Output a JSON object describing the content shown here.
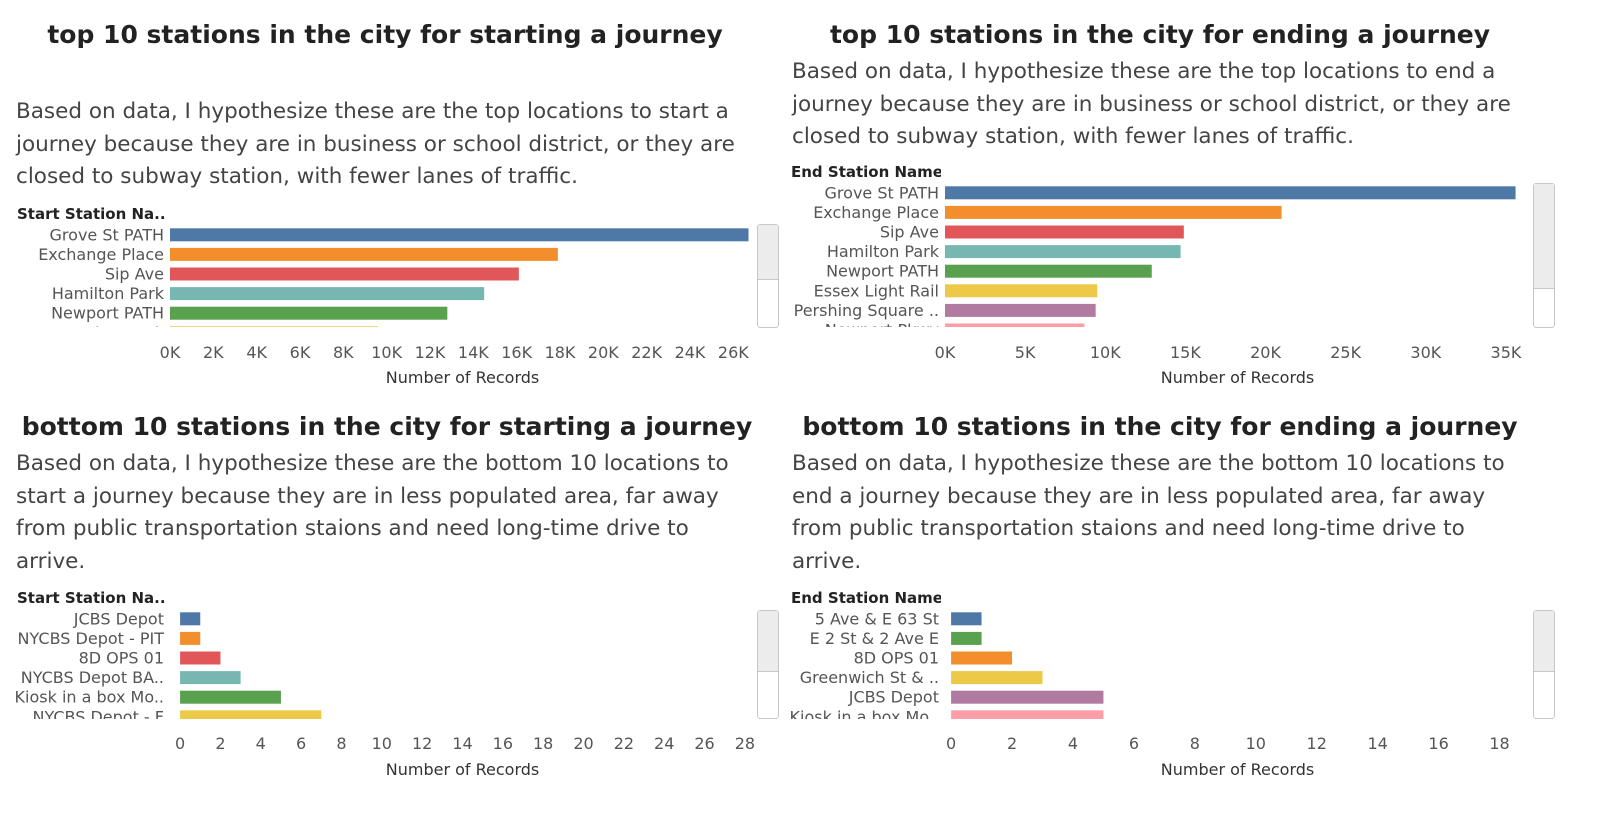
{
  "chart_data": [
    {
      "type": "bar",
      "title": "top 10 stations in the city for starting a journey",
      "description": "Based on data, I hypothesize these are the top locations to start a journey because they are in business or school district, or they are closed to subway station, with fewer lanes of traffic.",
      "row_header": "Start Station Na..",
      "xlabel": "Number of Records",
      "xlim": [
        0,
        27000
      ],
      "x_ticks": [
        0,
        2000,
        4000,
        6000,
        8000,
        10000,
        12000,
        14000,
        16000,
        18000,
        20000,
        22000,
        24000,
        26000
      ],
      "x_tick_labels": [
        "0K",
        "2K",
        "4K",
        "6K",
        "8K",
        "10K",
        "12K",
        "14K",
        "16K",
        "18K",
        "20K",
        "22K",
        "24K",
        "26K"
      ],
      "categories": [
        "Grove St PATH",
        "Exchange Place",
        "Sip Ave",
        "Hamilton Park",
        "Newport PATH",
        "Paulus Hook"
      ],
      "values": [
        26700,
        17900,
        16100,
        14500,
        12800,
        9600
      ],
      "colors": [
        "#4e79a7",
        "#f28e2b",
        "#e15759",
        "#76b7b2",
        "#59a14f",
        "#edc948"
      ]
    },
    {
      "type": "bar",
      "title": "top 10 stations in the city for ending a journey",
      "description": "Based on data, I hypothesize these are the top locations to end a journey because they are in business or school district, or they are closed to subway station, with fewer lanes of traffic.",
      "row_header": "End Station Name",
      "xlabel": "Number of Records",
      "xlim": [
        0,
        36500
      ],
      "x_ticks": [
        0,
        5000,
        10000,
        15000,
        20000,
        25000,
        30000,
        35000
      ],
      "x_tick_labels": [
        "0K",
        "5K",
        "10K",
        "15K",
        "20K",
        "25K",
        "30K",
        "35K"
      ],
      "categories": [
        "Grove St PATH",
        "Exchange Place",
        "Sip Ave",
        "Hamilton Park",
        "Newport PATH",
        "Essex Light Rail",
        "Pershing Square ..",
        "Newport Pkwy"
      ],
      "values": [
        35600,
        21000,
        14900,
        14700,
        12900,
        9500,
        9400,
        8700
      ],
      "colors": [
        "#4e79a7",
        "#f28e2b",
        "#e15759",
        "#76b7b2",
        "#59a14f",
        "#edc948",
        "#b07aa1",
        "#ff9da7"
      ]
    },
    {
      "type": "bar",
      "title": "bottom 10 stations in the city for starting a journey",
      "description": "Based on data, I hypothesize these are the bottom 10 locations to start a journey because they are in less populated area, far away from public transportation staions and need long-time drive to arrive.",
      "row_header": "Start Station Na..",
      "xlabel": "Number of Records",
      "xlim": [
        -0.5,
        28.5
      ],
      "x_ticks": [
        0,
        2,
        4,
        6,
        8,
        10,
        12,
        14,
        16,
        18,
        20,
        22,
        24,
        26,
        28
      ],
      "x_tick_labels": [
        "0",
        "2",
        "4",
        "6",
        "8",
        "10",
        "12",
        "14",
        "16",
        "18",
        "20",
        "22",
        "24",
        "26",
        "28"
      ],
      "categories": [
        "JCBS Depot",
        "NYCBS Depot - PIT",
        "8D OPS 01",
        "NYCBS Depot BA..",
        "Kiosk in a box Mo..",
        "NYCBS Depot - F"
      ],
      "values": [
        1,
        1,
        2,
        3,
        5,
        7
      ],
      "colors": [
        "#4e79a7",
        "#f28e2b",
        "#e15759",
        "#76b7b2",
        "#59a14f",
        "#edc948"
      ]
    },
    {
      "type": "bar",
      "title": "bottom 10 stations in the city for ending a journey",
      "description": "Based on data, I hypothesize these are the bottom 10 locations to end a journey because they are in less populated area, far away from public transportation staions and need long-time drive to arrive.",
      "row_header": "End Station Name",
      "xlabel": "Number of Records",
      "xlim": [
        -0.2,
        19
      ],
      "x_ticks": [
        0,
        2,
        4,
        6,
        8,
        10,
        12,
        14,
        16,
        18
      ],
      "x_tick_labels": [
        "0",
        "2",
        "4",
        "6",
        "8",
        "10",
        "12",
        "14",
        "16",
        "18"
      ],
      "categories": [
        "5 Ave & E 63 St",
        "E 2 St & 2 Ave E",
        "8D OPS 01",
        "Greenwich St & ..",
        "JCBS Depot",
        "Kiosk in a box Mo.."
      ],
      "values": [
        1,
        1,
        2,
        3,
        5,
        5
      ],
      "colors": [
        "#4e79a7",
        "#59a14f",
        "#f28e2b",
        "#edc948",
        "#b07aa1",
        "#ff9da7"
      ]
    }
  ]
}
